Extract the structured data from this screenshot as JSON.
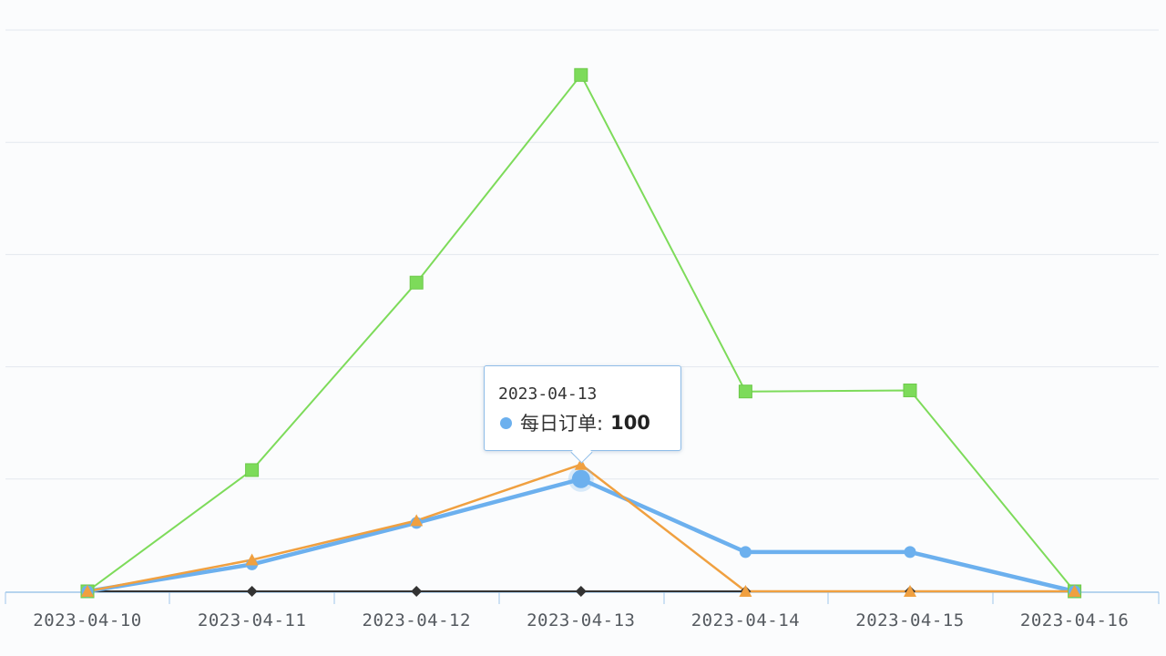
{
  "chart_data": {
    "type": "line",
    "categories": [
      "2023-04-10",
      "2023-04-11",
      "2023-04-12",
      "2023-04-13",
      "2023-04-14",
      "2023-04-15",
      "2023-04-16"
    ],
    "ylim": [
      0,
      500
    ],
    "grid": true,
    "series": [
      {
        "name": "",
        "color": "#7ddb5a",
        "marker": "square",
        "values": [
          0,
          108,
          275,
          460,
          178,
          179,
          0
        ]
      },
      {
        "name": "",
        "color": "#f0a040",
        "marker": "triangle",
        "values": [
          0,
          28,
          63,
          113,
          0,
          0,
          0
        ]
      },
      {
        "name": "每日订单",
        "color": "#6cb0ee",
        "marker": "circle",
        "values": [
          0,
          24,
          61,
          100,
          35,
          35,
          0
        ]
      },
      {
        "name": "",
        "color": "#333333",
        "marker": "diamond",
        "values": [
          0,
          0,
          0,
          0,
          0,
          0,
          0
        ]
      }
    ]
  },
  "tooltip": {
    "date": "2023-04-13",
    "series_name": "每日订单",
    "separator": ":",
    "value": "100",
    "dot_color": "#6cb0ee"
  }
}
